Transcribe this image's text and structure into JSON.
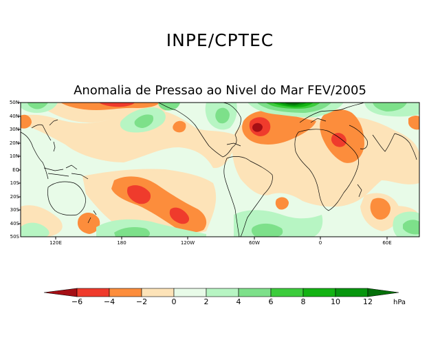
{
  "header": {
    "agency": "INPE/CPTEC",
    "title": "Anomalia de Pressao ao Nivel do Mar FEV/2005"
  },
  "map": {
    "latitude_labels": [
      "50N",
      "40N",
      "30N",
      "20N",
      "10N",
      "EQ",
      "10S",
      "20S",
      "30S",
      "40S",
      "50S"
    ],
    "longitude_labels": [
      "120E",
      "180",
      "120W",
      "60W",
      "0",
      "60E"
    ]
  },
  "colorbar": {
    "tick_labels": [
      "−6",
      "−4",
      "−2",
      "0",
      "2",
      "4",
      "6",
      "8",
      "10",
      "12"
    ],
    "unit": "hPa",
    "colors": {
      "below_-6": "#a50f15",
      "-6_-4": "#ef3b2c",
      "-4_-2": "#fc8d3c",
      "-2_0": "#fde3b8",
      "0_2": "#e8fbe8",
      "2_4": "#b7f5c3",
      "4_6": "#7de08a",
      "6_8": "#3ccc3c",
      "8_10": "#13b313",
      "10_12": "#07960e",
      "above_12": "#046f0a"
    }
  }
}
